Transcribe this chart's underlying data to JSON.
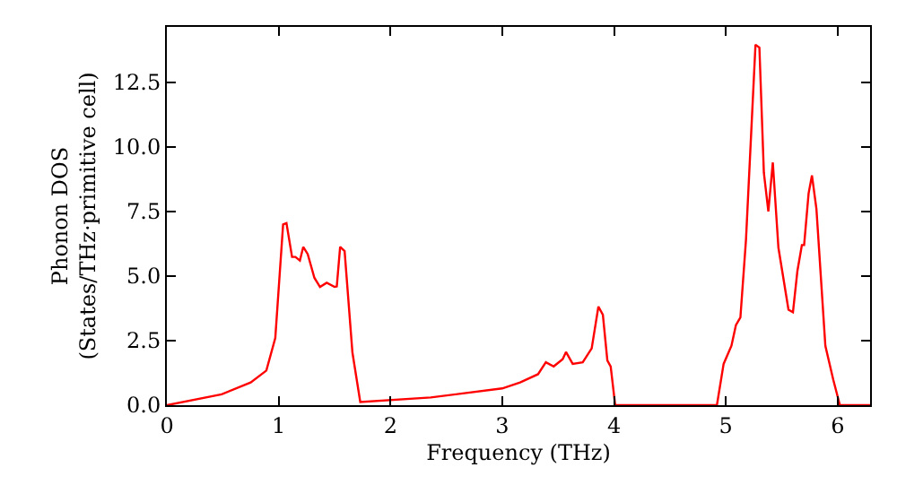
{
  "chart_data": {
    "type": "line",
    "xlabel": "Frequency (THz)",
    "ylabel": "Phonon DOS\n(States/THz·primitive cell)",
    "series": [
      {
        "color": "#ff0000",
        "x": [
          0,
          0.49,
          0.75,
          0.89,
          0.97,
          1.04,
          1.07,
          1.12,
          1.15,
          1.19,
          1.22,
          1.26,
          1.32,
          1.37,
          1.43,
          1.5,
          1.52,
          1.55,
          1.59,
          1.66,
          1.73,
          2.36,
          3.0,
          3.16,
          3.32,
          3.39,
          3.46,
          3.54,
          3.57,
          3.63,
          3.72,
          3.8,
          3.86,
          3.9,
          3.94,
          3.97,
          4.01,
          4.92,
          4.98,
          5.05,
          5.09,
          5.13,
          5.18,
          5.265,
          5.3,
          5.34,
          5.38,
          5.42,
          5.47,
          5.56,
          5.6,
          5.64,
          5.68,
          5.7,
          5.74,
          5.77,
          5.81,
          5.89,
          5.96,
          6.02,
          6.29
        ],
        "values": [
          0,
          0.42,
          0.88,
          1.34,
          2.6,
          7.0,
          7.05,
          5.74,
          5.74,
          5.6,
          6.13,
          5.85,
          4.93,
          4.58,
          4.74,
          4.58,
          4.6,
          6.13,
          5.97,
          2.04,
          0.12,
          0.3,
          0.65,
          0.88,
          1.2,
          1.66,
          1.5,
          1.78,
          2.06,
          1.6,
          1.66,
          2.2,
          3.82,
          3.5,
          1.73,
          1.5,
          0,
          0,
          1.6,
          2.3,
          3.1,
          3.4,
          6.4,
          13.96,
          13.85,
          9.0,
          7.5,
          9.4,
          6.1,
          3.7,
          3.6,
          5.2,
          6.2,
          6.2,
          8.2,
          8.9,
          7.6,
          2.3,
          1.0,
          0,
          0
        ]
      }
    ],
    "xlim": [
      0,
      6.29
    ],
    "xticks": [
      0,
      1,
      2,
      3,
      4,
      5,
      6
    ],
    "ylim": [
      0,
      14.65
    ],
    "yticks": [
      {
        "value": 0,
        "label": "0.0"
      },
      {
        "value": 2.5,
        "label": "2.5"
      },
      {
        "value": 5,
        "label": "5.0"
      },
      {
        "value": 7.5,
        "label": "7.5"
      },
      {
        "value": 10,
        "label": "10.0"
      },
      {
        "value": 12.5,
        "label": "12.5"
      }
    ],
    "grid": false,
    "marker": "none",
    "line_style": "solid"
  }
}
